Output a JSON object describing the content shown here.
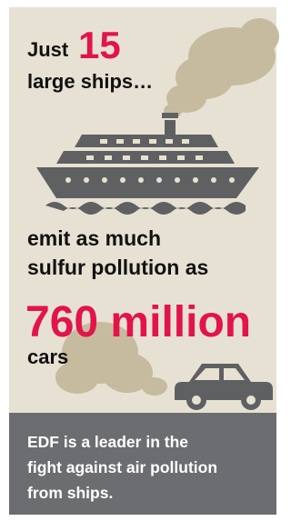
{
  "headline": {
    "lead": "Just",
    "number": "15",
    "rest": "large ships…"
  },
  "middle": [
    "emit as much",
    "sulfur pollution as"
  ],
  "highlight": "760 million",
  "tail": "cars",
  "footer": [
    "EDF is a leader in the",
    "fight against air pollution",
    "from ships."
  ]
}
